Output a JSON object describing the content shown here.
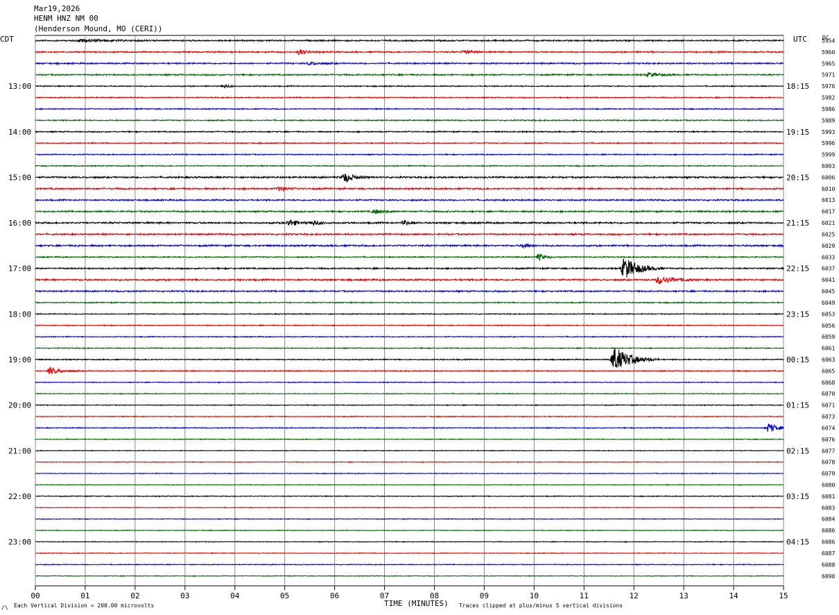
{
  "header": {
    "date": "Mar19,2026",
    "station": "HENM HNZ NM 00",
    "location": "(Henderson Mound, MO (CERI))"
  },
  "left_axis_title": "CDT",
  "right_axis_title": "UTC",
  "dc_title": "DC",
  "footer": {
    "xlabel": "TIME (MINUTES)",
    "vertical_division": "Each Vertical Division =  200.00 microvolts",
    "clip_note": "Traces clipped at plus/minus 5 vertical divisions"
  },
  "colors": {
    "black": "#000000",
    "red": "#e00000",
    "blue": "#0000d0",
    "green": "#006400",
    "grid": "#888888"
  },
  "chart_data": {
    "type": "line",
    "title": "HENM HNZ NM 00",
    "xlabel": "TIME (MINUTES)",
    "xlim": [
      0,
      15
    ],
    "x_ticks": [
      "00",
      "01",
      "02",
      "03",
      "04",
      "05",
      "06",
      "07",
      "08",
      "09",
      "10",
      "11",
      "12",
      "13",
      "14",
      "15"
    ],
    "left_hour_labels": [
      {
        "row": 4,
        "label": "13:00"
      },
      {
        "row": 8,
        "label": "14:00"
      },
      {
        "row": 12,
        "label": "15:00"
      },
      {
        "row": 16,
        "label": "16:00"
      },
      {
        "row": 20,
        "label": "17:00"
      },
      {
        "row": 24,
        "label": "18:00"
      },
      {
        "row": 28,
        "label": "19:00"
      },
      {
        "row": 32,
        "label": "20:00"
      },
      {
        "row": 36,
        "label": "21:00"
      },
      {
        "row": 40,
        "label": "22:00"
      },
      {
        "row": 44,
        "label": "23:00"
      }
    ],
    "right_hour_labels": [
      {
        "row": 4,
        "label": "18:15"
      },
      {
        "row": 8,
        "label": "19:15"
      },
      {
        "row": 12,
        "label": "20:15"
      },
      {
        "row": 16,
        "label": "21:15"
      },
      {
        "row": 20,
        "label": "22:15"
      },
      {
        "row": 24,
        "label": "23:15"
      },
      {
        "row": 28,
        "label": "00:15"
      },
      {
        "row": 32,
        "label": "01:15"
      },
      {
        "row": 36,
        "label": "02:15"
      },
      {
        "row": 40,
        "label": "03:15"
      },
      {
        "row": 44,
        "label": "04:15"
      }
    ],
    "dc_values": [
      "5954",
      "5960",
      "5965",
      "5971",
      "5976",
      "5982",
      "5986",
      "5989",
      "5993",
      "5996",
      "5999",
      "6003",
      "6006",
      "6010",
      "6013",
      "6017",
      "6021",
      "6025",
      "6029",
      "6033",
      "6037",
      "6041",
      "6045",
      "6049",
      "6053",
      "6056",
      "6059",
      "6061",
      "6063",
      "6065",
      "6068",
      "6070",
      "6071",
      "6073",
      "6074",
      "6076",
      "6077",
      "6078",
      "6079",
      "6080",
      "6081",
      "6083",
      "6084",
      "6086",
      "6086",
      "6087",
      "6088",
      "6090"
    ],
    "trace_colors": [
      "black",
      "red",
      "blue",
      "green"
    ],
    "baseline_noise": [
      1.2,
      1.2,
      1.2,
      1.2,
      0.9,
      0.9,
      0.9,
      1.0,
      1.0,
      0.9,
      0.9,
      0.9,
      1.4,
      1.3,
      1.2,
      1.3,
      1.4,
      1.3,
      1.4,
      1.0,
      1.2,
      1.4,
      1.2,
      0.9,
      0.8,
      0.8,
      0.8,
      0.8,
      0.9,
      0.9,
      0.7,
      0.7,
      0.7,
      0.7,
      0.8,
      0.7,
      0.6,
      0.6,
      0.6,
      0.6,
      0.7,
      0.6,
      0.6,
      0.6,
      0.6,
      0.6,
      0.7,
      0.6
    ],
    "events": [
      {
        "row": 0,
        "minute": 0.9,
        "amp": 2,
        "dur": 1.5
      },
      {
        "row": 1,
        "minute": 5.3,
        "amp": 4,
        "dur": 0.4
      },
      {
        "row": 1,
        "minute": 8.6,
        "amp": 2.5,
        "dur": 0.4
      },
      {
        "row": 2,
        "minute": 5.5,
        "amp": 2,
        "dur": 0.6
      },
      {
        "row": 3,
        "minute": 12.3,
        "amp": 3,
        "dur": 0.6
      },
      {
        "row": 4,
        "minute": 3.8,
        "amp": 2.5,
        "dur": 0.3
      },
      {
        "row": 12,
        "minute": 6.2,
        "amp": 7,
        "dur": 0.5
      },
      {
        "row": 13,
        "minute": 4.9,
        "amp": 3,
        "dur": 0.4
      },
      {
        "row": 15,
        "minute": 6.8,
        "amp": 3,
        "dur": 0.5
      },
      {
        "row": 16,
        "minute": 5.1,
        "amp": 5,
        "dur": 0.4
      },
      {
        "row": 16,
        "minute": 5.6,
        "amp": 4,
        "dur": 0.3
      },
      {
        "row": 16,
        "minute": 7.4,
        "amp": 3.5,
        "dur": 0.3
      },
      {
        "row": 18,
        "minute": 9.8,
        "amp": 4,
        "dur": 0.3
      },
      {
        "row": 19,
        "minute": 10.1,
        "amp": 5,
        "dur": 0.3
      },
      {
        "row": 20,
        "minute": 11.8,
        "amp": 16,
        "dur": 0.8
      },
      {
        "row": 21,
        "minute": 12.5,
        "amp": 6,
        "dur": 0.8
      },
      {
        "row": 28,
        "minute": 11.6,
        "amp": 18,
        "dur": 0.9
      },
      {
        "row": 29,
        "minute": 0.3,
        "amp": 5,
        "dur": 0.6
      },
      {
        "row": 34,
        "minute": 14.7,
        "amp": 7,
        "dur": 0.5
      }
    ]
  }
}
